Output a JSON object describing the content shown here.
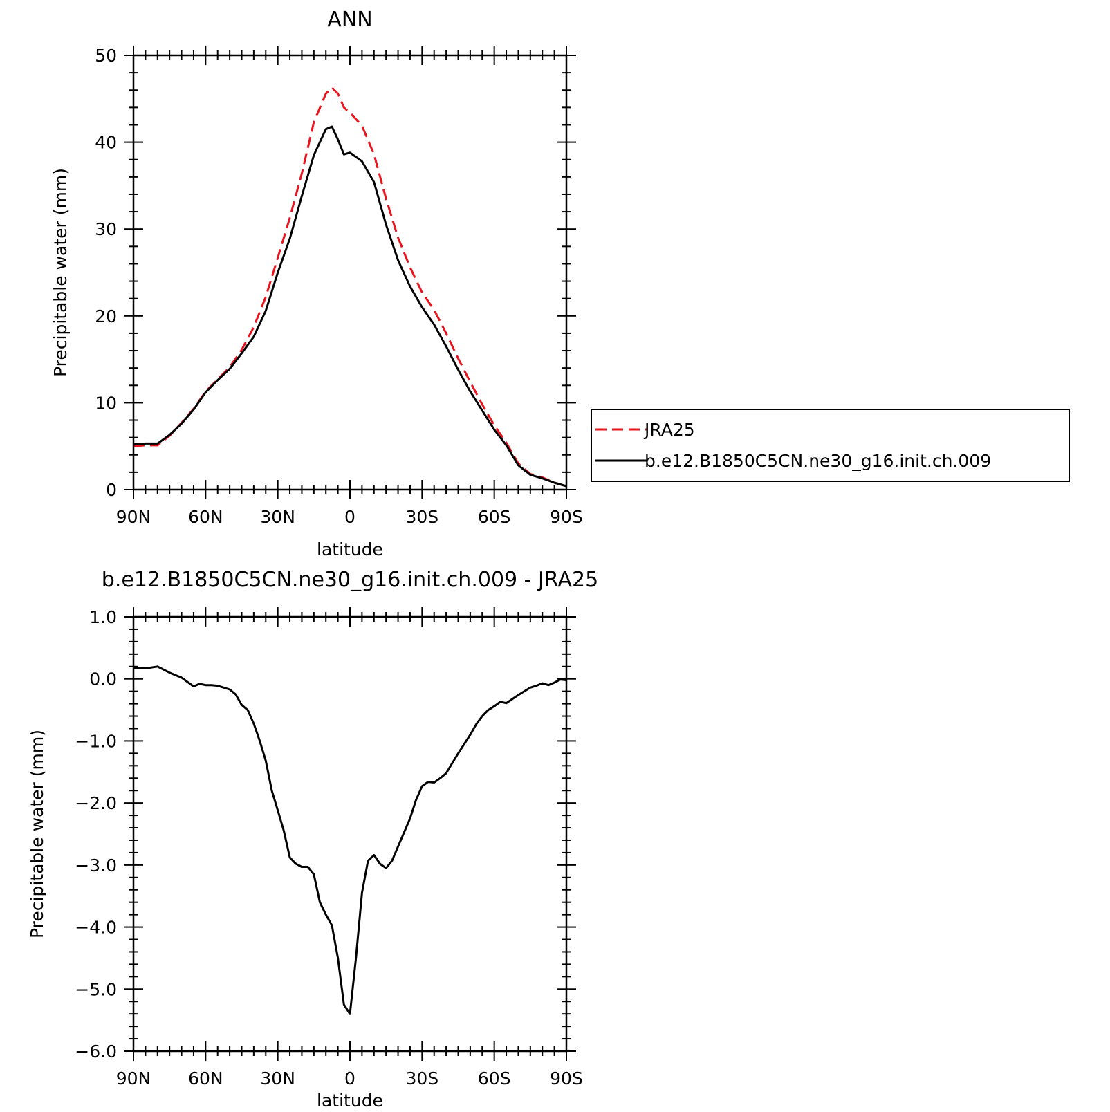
{
  "chart_data": [
    {
      "type": "line",
      "title": "ANN",
      "xlabel": "latitude",
      "ylabel": "Precipitable water (mm)",
      "xlim": [
        90,
        -90
      ],
      "ylim": [
        0,
        50
      ],
      "x_ticks": [
        90,
        60,
        30,
        0,
        -30,
        -60,
        -90
      ],
      "x_tick_labels": [
        "90N",
        "60N",
        "30N",
        "0",
        "30S",
        "60S",
        "90S"
      ],
      "y_ticks": [
        0,
        10,
        20,
        30,
        40,
        50
      ],
      "y_tick_labels": [
        "0",
        "10",
        "20",
        "30",
        "40",
        "50"
      ],
      "grid": false,
      "legend": "right",
      "series": [
        {
          "name": "JRA25",
          "color": "#e8141e",
          "dash": "dashed",
          "x": [
            90,
            85,
            80,
            75,
            70,
            65,
            60,
            55,
            50,
            45,
            40,
            35,
            30,
            25,
            20,
            15,
            10,
            7.5,
            5,
            2.5,
            0,
            -5,
            -10,
            -15,
            -20,
            -25,
            -30,
            -35,
            -40,
            -45,
            -50,
            -55,
            -60,
            -65,
            -70,
            -75,
            -80,
            -85,
            -90
          ],
          "y": [
            5.0,
            5.1,
            5.1,
            6.2,
            7.7,
            9.3,
            11.3,
            12.7,
            14.1,
            16.1,
            18.7,
            22.2,
            26.7,
            31.3,
            36.4,
            42.3,
            45.6,
            46.3,
            45.6,
            44.0,
            43.4,
            41.9,
            38.6,
            33.5,
            29.0,
            25.6,
            22.7,
            20.7,
            18.0,
            15.1,
            12.4,
            9.8,
            7.4,
            5.4,
            3.0,
            1.8,
            1.4,
            0.8,
            0.4
          ]
        },
        {
          "name": "b.e12.B1850C5CN.ne30_g16.init.ch.009",
          "color": "#000000",
          "dash": "solid",
          "x": [
            90,
            85,
            80,
            75,
            70,
            65,
            60,
            55,
            50,
            45,
            40,
            35,
            30,
            25,
            20,
            15,
            10,
            7.5,
            5,
            2.5,
            0,
            -5,
            -10,
            -15,
            -20,
            -25,
            -30,
            -35,
            -40,
            -45,
            -50,
            -55,
            -60,
            -65,
            -70,
            -75,
            -80,
            -85,
            -90
          ],
          "y": [
            5.2,
            5.3,
            5.3,
            6.3,
            7.6,
            9.2,
            11.2,
            12.6,
            13.9,
            15.7,
            17.6,
            20.6,
            25.0,
            28.9,
            33.8,
            38.5,
            41.5,
            41.8,
            40.3,
            38.6,
            38.8,
            37.8,
            35.4,
            30.5,
            26.4,
            23.4,
            21.0,
            19.0,
            16.5,
            13.8,
            11.3,
            9.1,
            6.9,
            5.1,
            2.8,
            1.7,
            1.3,
            0.8,
            0.4
          ]
        }
      ]
    },
    {
      "type": "line",
      "title": "b.e12.B1850C5CN.ne30_g16.init.ch.009 - JRA25",
      "xlabel": "latitude",
      "ylabel": "Precipitable water (mm)",
      "xlim": [
        90,
        -90
      ],
      "ylim": [
        -6.0,
        1.0
      ],
      "x_ticks": [
        90,
        60,
        30,
        0,
        -30,
        -60,
        -90
      ],
      "x_tick_labels": [
        "90N",
        "60N",
        "30N",
        "0",
        "30S",
        "60S",
        "90S"
      ],
      "y_ticks": [
        1.0,
        0.0,
        -1.0,
        -2.0,
        -3.0,
        -4.0,
        -5.0,
        -6.0
      ],
      "y_tick_labels": [
        "1.0",
        "0.0",
        "−1.0",
        "−2.0",
        "−3.0",
        "−4.0",
        "−5.0",
        "−6.0"
      ],
      "grid": false,
      "series": [
        {
          "color": "#000000",
          "dash": "solid",
          "x": [
            90,
            85,
            80,
            75,
            70,
            65,
            62.5,
            60,
            57.5,
            55,
            50,
            47.5,
            45,
            42.5,
            40,
            37.5,
            35,
            32.5,
            30,
            27.5,
            25,
            22.5,
            20,
            17.5,
            15,
            12.5,
            10,
            7.5,
            5,
            2.5,
            0,
            -2.5,
            -5,
            -7.5,
            -10,
            -12.5,
            -15,
            -17.5,
            -20,
            -25,
            -27.5,
            -30,
            -32.5,
            -35,
            -37.5,
            -40,
            -45,
            -50,
            -52.5,
            -55,
            -57.5,
            -60,
            -62.5,
            -65,
            -70,
            -75,
            -77.5,
            -80,
            -82.5,
            -85,
            -87.5,
            -90
          ],
          "y": [
            0.18,
            0.17,
            0.2,
            0.1,
            0.02,
            -0.12,
            -0.08,
            -0.1,
            -0.1,
            -0.11,
            -0.17,
            -0.25,
            -0.42,
            -0.5,
            -0.72,
            -1.0,
            -1.32,
            -1.8,
            -2.12,
            -2.45,
            -2.88,
            -2.98,
            -3.03,
            -3.03,
            -3.15,
            -3.6,
            -3.8,
            -3.97,
            -4.5,
            -5.25,
            -5.4,
            -4.5,
            -3.45,
            -2.93,
            -2.84,
            -2.98,
            -3.05,
            -2.93,
            -2.7,
            -2.25,
            -1.95,
            -1.73,
            -1.66,
            -1.67,
            -1.6,
            -1.52,
            -1.2,
            -0.9,
            -0.73,
            -0.6,
            -0.5,
            -0.44,
            -0.37,
            -0.39,
            -0.26,
            -0.14,
            -0.11,
            -0.07,
            -0.1,
            -0.06,
            -0.01,
            -0.02
          ]
        }
      ]
    }
  ]
}
